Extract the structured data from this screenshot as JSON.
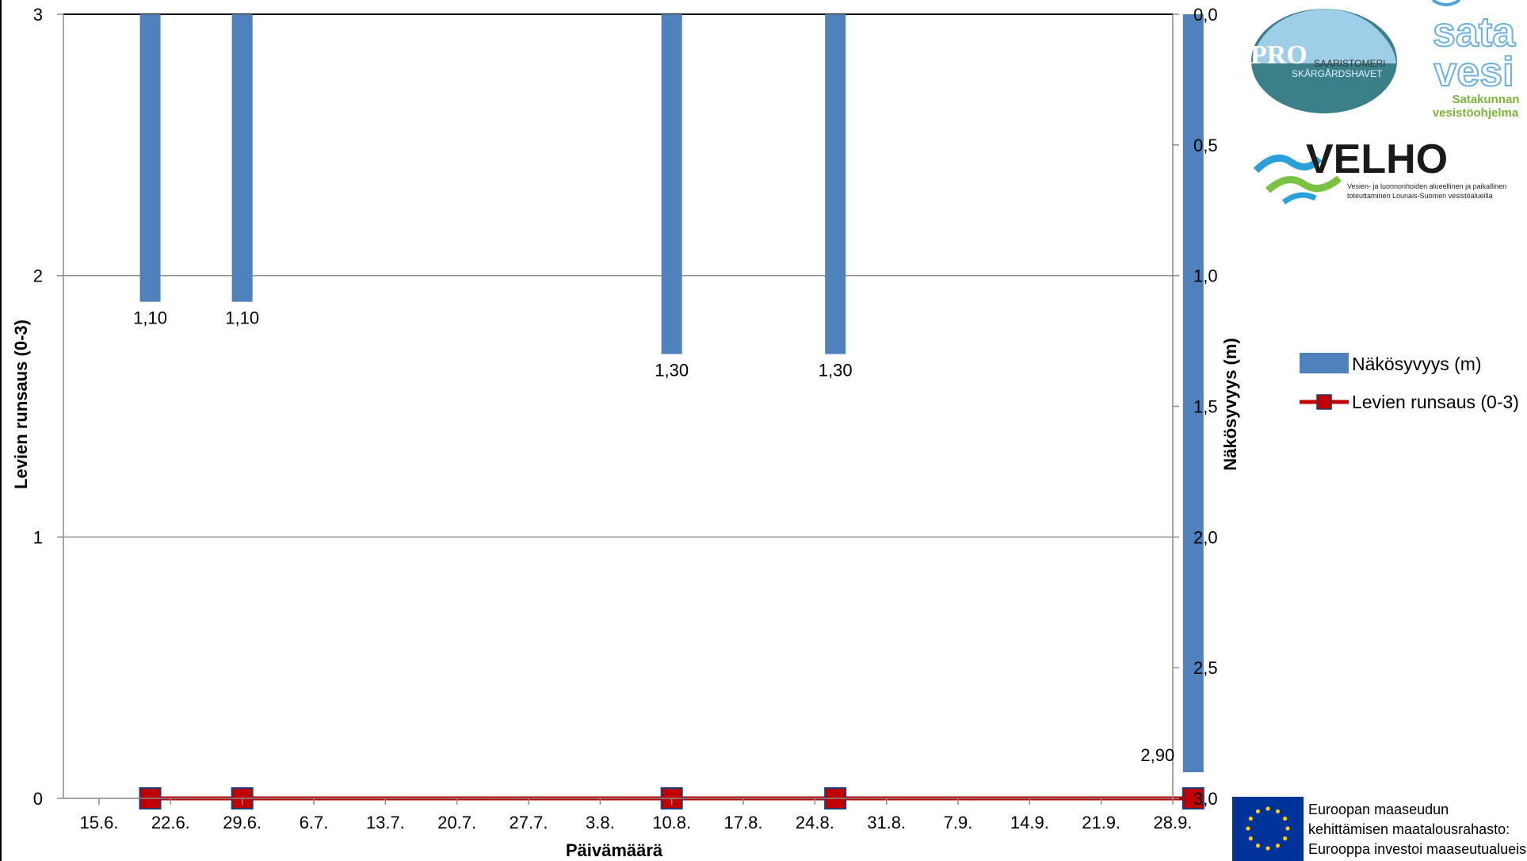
{
  "chart_data": {
    "type": "bar",
    "x_dates": [
      "15.6.",
      "22.6.",
      "29.6.",
      "6.7.",
      "13.7.",
      "20.7.",
      "27.7.",
      "3.8.",
      "10.8.",
      "17.8.",
      "24.8.",
      "31.8.",
      "7.9.",
      "14.9.",
      "21.9.",
      "28.9."
    ],
    "xlabel": "Päivämäärä",
    "ylabel_left": "Levien runsaus (0-3)",
    "ylabel_right": "Näkösyvyys (m)",
    "ylim_left": [
      0,
      3
    ],
    "yticks_left": [
      "0",
      "1",
      "2",
      "3"
    ],
    "ylim_right": [
      0,
      3
    ],
    "right_axis_inverted": true,
    "yticks_right": [
      "0,0",
      "0,5",
      "1,0",
      "1,5",
      "2,0",
      "2,5",
      "3,0"
    ],
    "grid": true,
    "legend_position": "right",
    "series": [
      {
        "name": "Näkösyvyys (m)",
        "kind": "bar",
        "axis": "right",
        "color": "#4f81bd",
        "x": [
          "20.6.",
          "29.6.",
          "10.8.",
          "26.8.",
          "30.9."
        ],
        "values": [
          1.1,
          1.1,
          1.3,
          1.3,
          2.9
        ],
        "labels": [
          "1,10",
          "1,10",
          "1,30",
          "1,30",
          "2,90"
        ]
      },
      {
        "name": "Levien runsaus (0-3)",
        "kind": "line",
        "axis": "left",
        "color": "#c00000",
        "marker_color": "#c00000",
        "x": [
          "20.6.",
          "29.6.",
          "10.8.",
          "26.8.",
          "30.9."
        ],
        "values": [
          0,
          0,
          0,
          0,
          0
        ]
      }
    ]
  },
  "logos": {
    "pro": {
      "big": "PRO",
      "line1": "SAARISTOMERI",
      "line2": "SKÄRGÅRDSHAVET"
    },
    "satavesi": {
      "word1": "sata",
      "word2": "vesi",
      "sub1": "Satakunnan",
      "sub2": "vesistöohjelma"
    },
    "velho": {
      "word": "VELHO",
      "sub1": "Vesien- ja luonnonhoiden alueellinen ja paikallinen",
      "sub2": "toteuttaminen Lounais-Suomen vesistöalueilla"
    },
    "eu": {
      "line1": "Euroopan maaseudun",
      "line2": "kehittämisen maatalousrahasto:",
      "line3": "Eurooppa investoi maaseutualueisiin"
    }
  },
  "colors": {
    "bar": "#4f81bd",
    "line": "#c00000",
    "eu_flag": "#003399",
    "eu_star": "#ffcc00"
  }
}
